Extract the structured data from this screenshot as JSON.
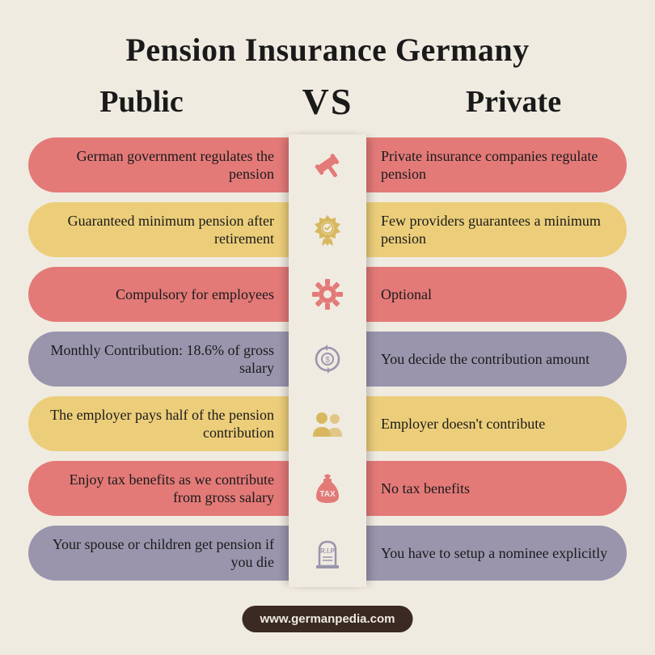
{
  "title": "Pension Insurance Germany",
  "left_header": "Public",
  "vs": "VS",
  "right_header": "Private",
  "footer": "www.germanpedia.com",
  "colors": {
    "red": "#e37a78",
    "yellow": "#ecce7a",
    "purple": "#9a95ad",
    "icon_red": "#e37a78",
    "icon_yellow": "#d8b85f",
    "icon_purple": "#9a95ad"
  },
  "rows": [
    {
      "left": "German government regulates the pension",
      "right": "Private insurance companies regulate pension",
      "color": "red",
      "icon": "gavel"
    },
    {
      "left": "Guaranteed minimum pension after retirement",
      "right": "Few providers guarantees a minimum pension",
      "color": "yellow",
      "icon": "badge"
    },
    {
      "left": "Compulsory for employees",
      "right": "Optional",
      "color": "red",
      "icon": "gear"
    },
    {
      "left": "Monthly Contribution: 18.6% of gross salary",
      "right": "You decide the contribution amount",
      "color": "purple",
      "icon": "cycle"
    },
    {
      "left": "The employer pays half of the pension contribution",
      "right": "Employer doesn't contribute",
      "color": "yellow",
      "icon": "people"
    },
    {
      "left": "Enjoy tax benefits as we contribute from gross salary",
      "right": "No tax benefits",
      "color": "red",
      "icon": "tax"
    },
    {
      "left": "Your spouse or children get pension if you die",
      "right": "You have to setup a nominee explicitly",
      "color": "purple",
      "icon": "grave"
    }
  ]
}
